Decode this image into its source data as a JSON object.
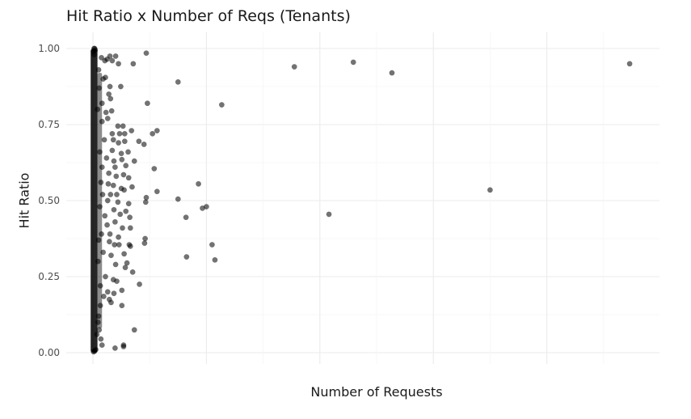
{
  "chart_data": {
    "type": "scatter",
    "title": "Hit Ratio x Number of Reqs (Tenants)",
    "xlabel": "Number of Requests",
    "ylabel": "Hit Ratio",
    "x_ticks_labeled": false,
    "xlim": [
      0,
      100
    ],
    "ylim": [
      -0.03,
      1.05
    ],
    "y_ticks": [
      "0.00",
      "0.25",
      "0.50",
      "0.75",
      "1.00"
    ],
    "grid": true,
    "point_color": "#000000",
    "point_opacity": 0.55,
    "points": [
      [
        0.2,
        1.0
      ],
      [
        0.3,
        1.0
      ],
      [
        0.1,
        0.99
      ],
      [
        0.4,
        0.995
      ],
      [
        0.2,
        0.98
      ],
      [
        1.5,
        0.97
      ],
      [
        2.1,
        0.96
      ],
      [
        3.0,
        0.975
      ],
      [
        2.5,
        0.965
      ],
      [
        4.0,
        0.975
      ],
      [
        3.4,
        0.96
      ],
      [
        4.5,
        0.95
      ],
      [
        7.1,
        0.95
      ],
      [
        9.4,
        0.985
      ],
      [
        1.0,
        0.93
      ],
      [
        1.8,
        0.9
      ],
      [
        2.2,
        0.905
      ],
      [
        1.1,
        0.87
      ],
      [
        3.0,
        0.875
      ],
      [
        4.9,
        0.875
      ],
      [
        2.8,
        0.85
      ],
      [
        1.6,
        0.82
      ],
      [
        3.1,
        0.835
      ],
      [
        0.8,
        0.8
      ],
      [
        2.3,
        0.79
      ],
      [
        3.3,
        0.795
      ],
      [
        1.6,
        0.76
      ],
      [
        2.6,
        0.77
      ],
      [
        4.4,
        0.745
      ],
      [
        5.3,
        0.745
      ],
      [
        3.4,
        0.72
      ],
      [
        4.7,
        0.72
      ],
      [
        5.6,
        0.72
      ],
      [
        6.8,
        0.73
      ],
      [
        2.0,
        0.7
      ],
      [
        3.6,
        0.7
      ],
      [
        4.5,
        0.69
      ],
      [
        5.6,
        0.695
      ],
      [
        8.1,
        0.695
      ],
      [
        9.0,
        0.685
      ],
      [
        10.5,
        0.72
      ],
      [
        11.3,
        0.73
      ],
      [
        1.2,
        0.66
      ],
      [
        3.4,
        0.665
      ],
      [
        5.0,
        0.655
      ],
      [
        6.2,
        0.66
      ],
      [
        2.4,
        0.64
      ],
      [
        3.7,
        0.63
      ],
      [
        5.1,
        0.635
      ],
      [
        7.3,
        0.63
      ],
      [
        1.6,
        0.61
      ],
      [
        3.9,
        0.61
      ],
      [
        5.8,
        0.615
      ],
      [
        2.8,
        0.59
      ],
      [
        4.1,
        0.58
      ],
      [
        5.4,
        0.585
      ],
      [
        6.3,
        0.575
      ],
      [
        10.8,
        0.605
      ],
      [
        1.4,
        0.56
      ],
      [
        2.7,
        0.555
      ],
      [
        3.6,
        0.55
      ],
      [
        5.0,
        0.54
      ],
      [
        6.9,
        0.545
      ],
      [
        1.7,
        0.52
      ],
      [
        3.1,
        0.52
      ],
      [
        4.2,
        0.52
      ],
      [
        5.5,
        0.535
      ],
      [
        9.4,
        0.51
      ],
      [
        9.3,
        0.495
      ],
      [
        11.3,
        0.53
      ],
      [
        2.6,
        0.5
      ],
      [
        4.4,
        0.495
      ],
      [
        6.3,
        0.49
      ],
      [
        1.2,
        0.48
      ],
      [
        3.7,
        0.47
      ],
      [
        5.8,
        0.465
      ],
      [
        2.1,
        0.45
      ],
      [
        4.8,
        0.455
      ],
      [
        6.5,
        0.445
      ],
      [
        15.0,
        0.505
      ],
      [
        16.4,
        0.445
      ],
      [
        18.6,
        0.555
      ],
      [
        19.3,
        0.475
      ],
      [
        20.0,
        0.48
      ],
      [
        2.5,
        0.42
      ],
      [
        3.9,
        0.43
      ],
      [
        5.2,
        0.41
      ],
      [
        6.6,
        0.41
      ],
      [
        1.5,
        0.39
      ],
      [
        3.0,
        0.39
      ],
      [
        4.5,
        0.38
      ],
      [
        1.0,
        0.37
      ],
      [
        2.9,
        0.365
      ],
      [
        3.8,
        0.355
      ],
      [
        4.6,
        0.355
      ],
      [
        6.4,
        0.355
      ],
      [
        6.6,
        0.35
      ],
      [
        9.2,
        0.375
      ],
      [
        9.1,
        0.36
      ],
      [
        21.0,
        0.355
      ],
      [
        21.5,
        0.305
      ],
      [
        16.5,
        0.315
      ],
      [
        1.8,
        0.33
      ],
      [
        3.2,
        0.32
      ],
      [
        5.5,
        0.325
      ],
      [
        0.9,
        0.3
      ],
      [
        4.0,
        0.29
      ],
      [
        6.0,
        0.295
      ],
      [
        5.7,
        0.28
      ],
      [
        7.0,
        0.265
      ],
      [
        2.2,
        0.25
      ],
      [
        3.6,
        0.24
      ],
      [
        4.2,
        0.235
      ],
      [
        1.3,
        0.22
      ],
      [
        8.2,
        0.225
      ],
      [
        2.6,
        0.2
      ],
      [
        3.7,
        0.195
      ],
      [
        5.1,
        0.205
      ],
      [
        1.9,
        0.185
      ],
      [
        2.9,
        0.175
      ],
      [
        3.2,
        0.165
      ],
      [
        1.3,
        0.155
      ],
      [
        5.1,
        0.155
      ],
      [
        1.0,
        0.12
      ],
      [
        0.9,
        0.1
      ],
      [
        1.1,
        0.075
      ],
      [
        0.7,
        0.06
      ],
      [
        1.4,
        0.045
      ],
      [
        7.3,
        0.075
      ],
      [
        1.6,
        0.025
      ],
      [
        3.9,
        0.015
      ],
      [
        5.4,
        0.02
      ],
      [
        5.4,
        0.025
      ],
      [
        0.5,
        0.01
      ],
      [
        0.3,
        0.005
      ],
      [
        0.1,
        0.003
      ],
      [
        15.0,
        0.89
      ],
      [
        9.6,
        0.82
      ],
      [
        22.7,
        0.815
      ],
      [
        35.5,
        0.94
      ],
      [
        45.9,
        0.955
      ],
      [
        52.7,
        0.92
      ],
      [
        41.6,
        0.455
      ],
      [
        70.0,
        0.535
      ],
      [
        94.6,
        0.95
      ]
    ]
  }
}
